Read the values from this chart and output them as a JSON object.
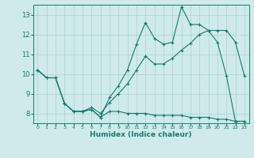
{
  "xlabel": "Humidex (Indice chaleur)",
  "hours": [
    0,
    1,
    2,
    3,
    4,
    5,
    6,
    7,
    8,
    9,
    10,
    11,
    12,
    13,
    14,
    15,
    16,
    17,
    18,
    19,
    20,
    21,
    22,
    23
  ],
  "line_top": [
    10.2,
    9.8,
    9.8,
    8.5,
    8.1,
    8.1,
    8.2,
    7.8,
    8.8,
    9.4,
    10.2,
    11.5,
    12.6,
    11.8,
    11.5,
    11.6,
    13.4,
    12.5,
    12.5,
    12.2,
    11.6,
    9.9,
    7.6,
    7.6
  ],
  "line_trend": [
    10.2,
    9.8,
    9.8,
    8.5,
    8.1,
    8.1,
    8.3,
    8.0,
    8.55,
    9.0,
    9.5,
    10.2,
    10.9,
    10.5,
    10.5,
    10.8,
    11.2,
    11.55,
    12.0,
    12.2,
    12.2,
    12.2,
    11.6,
    9.9
  ],
  "line_bot": [
    10.2,
    9.8,
    9.8,
    8.5,
    8.1,
    8.1,
    8.2,
    7.8,
    8.1,
    8.1,
    8.0,
    8.0,
    8.0,
    7.9,
    7.9,
    7.9,
    7.9,
    7.8,
    7.8,
    7.8,
    7.7,
    7.7,
    7.6,
    7.6
  ],
  "line_color": "#1a7a6e",
  "bg_color": "#ceeaea",
  "grid_color": "#a8cccc",
  "ylim": [
    7.5,
    13.5
  ],
  "yticks": [
    8,
    9,
    10,
    11,
    12,
    13
  ],
  "xlim": [
    -0.5,
    23.5
  ],
  "figsize": [
    3.2,
    2.0
  ],
  "dpi": 100
}
